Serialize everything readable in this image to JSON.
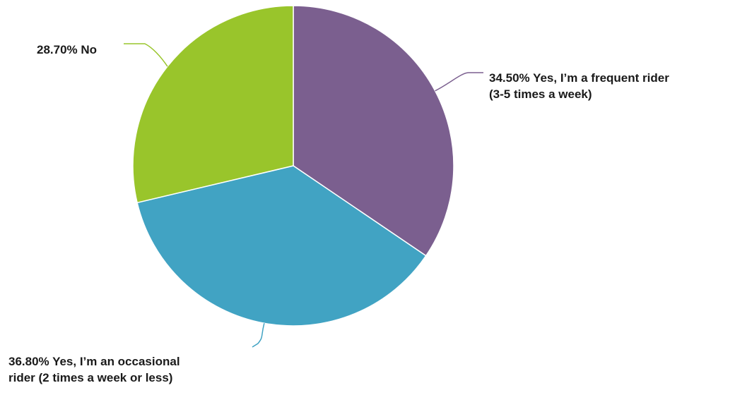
{
  "chart_data": {
    "type": "pie",
    "start_angle_deg": 0,
    "direction": "clockwise",
    "slices": [
      {
        "label_lines": [
          "34.50% Yes, I’m a frequent rider",
          "(3-5 times a week)"
        ],
        "value": 34.5,
        "color": "#7b5f8f"
      },
      {
        "label_lines": [
          "36.80% Yes, I’m an occasional",
          "rider (2 times a week or less)"
        ],
        "value": 36.8,
        "color": "#41a3c3"
      },
      {
        "label_lines": [
          "28.70% No"
        ],
        "value": 28.7,
        "color": "#99c52b"
      }
    ]
  }
}
